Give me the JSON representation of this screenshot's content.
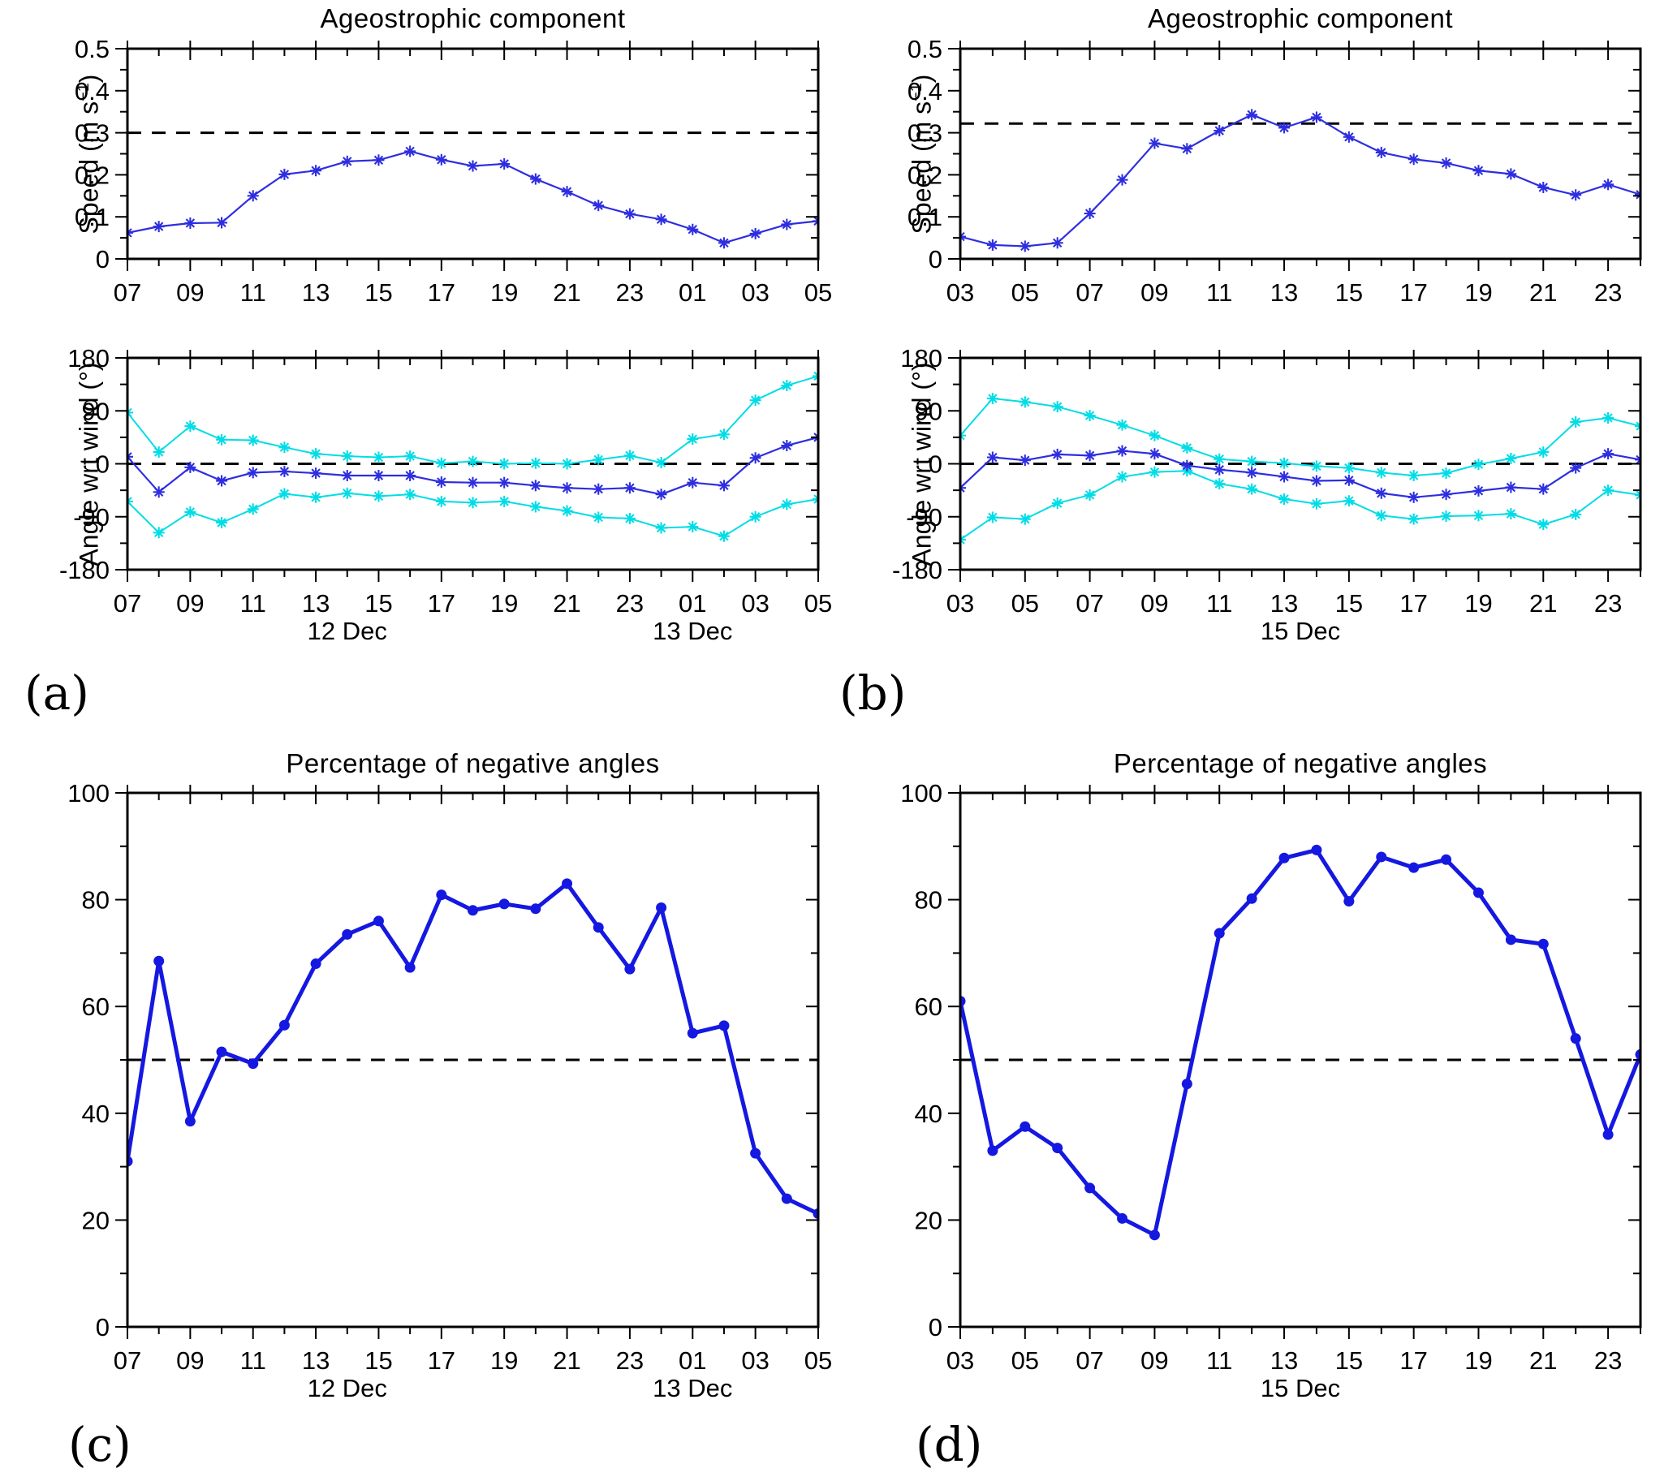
{
  "figure": {
    "panel_letters": [
      "(a)",
      "(b)",
      "(c)",
      "(d)"
    ],
    "colors": {
      "median_blue": "#2e2ee0",
      "envelope_cyan": "#00dde6",
      "percentage_blue": "#1518e0",
      "dashed_black": "#000000"
    }
  },
  "chart_data": [
    {
      "id": "a-speed",
      "type": "line",
      "title": "Ageostrophic component",
      "ylabel": {
        "pre": "Speed (m s",
        "sup": "−1",
        "post": ")"
      },
      "marker": "asterisk",
      "x": {
        "start_hour": 7,
        "end_hour": 29,
        "tick_labels": [
          {
            "h": 7,
            "t": "07"
          },
          {
            "h": 9,
            "t": "09"
          },
          {
            "h": 11,
            "t": "11"
          },
          {
            "h": 13,
            "t": "13"
          },
          {
            "h": 15,
            "t": "15"
          },
          {
            "h": 17,
            "t": "17"
          },
          {
            "h": 19,
            "t": "19"
          },
          {
            "h": 21,
            "t": "21"
          },
          {
            "h": 23,
            "t": "23"
          },
          {
            "h": 25,
            "t": "01"
          },
          {
            "h": 27,
            "t": "03"
          },
          {
            "h": 29,
            "t": "05"
          }
        ],
        "day_labels": []
      },
      "y": {
        "min": 0,
        "max": 0.5,
        "minor_step": 0.05,
        "ticks": [
          {
            "v": 0,
            "t": "0"
          },
          {
            "v": 0.1,
            "t": "0.1"
          },
          {
            "v": 0.2,
            "t": "0.2"
          },
          {
            "v": 0.3,
            "t": "0.3"
          },
          {
            "v": 0.4,
            "t": "0.4"
          },
          {
            "v": 0.5,
            "t": "0.5"
          }
        ]
      },
      "dashed_y": 0.3,
      "series": [
        {
          "name": "ageostrophic-speed",
          "color": "#2e2ee0",
          "width": 2.2,
          "values": [
            0.062,
            0.077,
            0.085,
            0.086,
            0.15,
            0.201,
            0.21,
            0.232,
            0.235,
            0.256,
            0.236,
            0.221,
            0.226,
            0.19,
            0.16,
            0.127,
            0.107,
            0.094,
            0.07,
            0.038,
            0.06,
            0.082,
            0.09
          ]
        }
      ]
    },
    {
      "id": "a-angle",
      "type": "line",
      "ylabel": {
        "pre": "Angle wrt wind (°)",
        "sup": "",
        "post": ""
      },
      "marker": "asterisk",
      "x": {
        "start_hour": 7,
        "end_hour": 29,
        "tick_labels": [
          {
            "h": 7,
            "t": "07"
          },
          {
            "h": 9,
            "t": "09"
          },
          {
            "h": 11,
            "t": "11"
          },
          {
            "h": 13,
            "t": "13"
          },
          {
            "h": 15,
            "t": "15"
          },
          {
            "h": 17,
            "t": "17"
          },
          {
            "h": 19,
            "t": "19"
          },
          {
            "h": 21,
            "t": "21"
          },
          {
            "h": 23,
            "t": "23"
          },
          {
            "h": 25,
            "t": "01"
          },
          {
            "h": 27,
            "t": "03"
          },
          {
            "h": 29,
            "t": "05"
          }
        ],
        "day_labels": [
          {
            "h": 14,
            "t": "12 Dec"
          },
          {
            "h": 25,
            "t": "13 Dec"
          }
        ]
      },
      "y": {
        "min": -180,
        "max": 180,
        "minor_step": 45,
        "ticks": [
          {
            "v": -180,
            "t": "-180"
          },
          {
            "v": -90,
            "t": "-90"
          },
          {
            "v": 0,
            "t": "0"
          },
          {
            "v": 90,
            "t": "90"
          },
          {
            "v": 180,
            "t": "180"
          }
        ]
      },
      "dashed_y": 0,
      "series": [
        {
          "name": "angle-upper-envelope",
          "color": "#00dde6",
          "width": 2.0,
          "values": [
            87,
            20,
            64,
            41,
            40,
            28,
            17,
            13,
            11,
            13,
            1,
            4,
            0,
            1,
            0,
            7,
            14,
            2,
            42,
            50,
            108,
            133,
            149
          ]
        },
        {
          "name": "angle-lower-envelope",
          "color": "#00dde6",
          "width": 2.0,
          "values": [
            -64,
            -117,
            -82,
            -100,
            -77,
            -51,
            -57,
            -50,
            -55,
            -52,
            -64,
            -66,
            -64,
            -73,
            -80,
            -91,
            -93,
            -109,
            -107,
            -123,
            -90,
            -69,
            -60
          ]
        },
        {
          "name": "angle-median",
          "color": "#2e2ee0",
          "width": 2.2,
          "values": [
            12,
            -48,
            -6,
            -29,
            -15,
            -13,
            -16,
            -20,
            -20,
            -20,
            -31,
            -32,
            -32,
            -37,
            -41,
            -43,
            -41,
            -52,
            -32,
            -37,
            10,
            31,
            45
          ]
        }
      ]
    },
    {
      "id": "b-speed",
      "type": "line",
      "title": "Ageostrophic component",
      "ylabel": {
        "pre": "Speed (m s",
        "sup": "−1",
        "post": ")"
      },
      "marker": "asterisk",
      "x": {
        "start_hour": 3,
        "end_hour": 24,
        "tick_labels": [
          {
            "h": 3,
            "t": "03"
          },
          {
            "h": 5,
            "t": "05"
          },
          {
            "h": 7,
            "t": "07"
          },
          {
            "h": 9,
            "t": "09"
          },
          {
            "h": 11,
            "t": "11"
          },
          {
            "h": 13,
            "t": "13"
          },
          {
            "h": 15,
            "t": "15"
          },
          {
            "h": 17,
            "t": "17"
          },
          {
            "h": 19,
            "t": "19"
          },
          {
            "h": 21,
            "t": "21"
          },
          {
            "h": 23,
            "t": "23"
          }
        ],
        "day_labels": []
      },
      "y": {
        "min": 0,
        "max": 0.5,
        "minor_step": 0.05,
        "ticks": [
          {
            "v": 0,
            "t": "0"
          },
          {
            "v": 0.1,
            "t": "0.1"
          },
          {
            "v": 0.2,
            "t": "0.2"
          },
          {
            "v": 0.3,
            "t": "0.3"
          },
          {
            "v": 0.4,
            "t": "0.4"
          },
          {
            "v": 0.5,
            "t": "0.5"
          }
        ]
      },
      "dashed_y": 0.322,
      "series": [
        {
          "name": "ageostrophic-speed",
          "color": "#2e2ee0",
          "width": 2.2,
          "values": [
            0.053,
            0.033,
            0.03,
            0.038,
            0.108,
            0.188,
            0.275,
            0.262,
            0.305,
            0.343,
            0.312,
            0.337,
            0.29,
            0.253,
            0.237,
            0.228,
            0.21,
            0.202,
            0.17,
            0.152,
            0.177,
            0.153
          ]
        }
      ]
    },
    {
      "id": "b-angle",
      "type": "line",
      "ylabel": {
        "pre": "Angle wrt wind (°)",
        "sup": "",
        "post": ""
      },
      "marker": "asterisk",
      "x": {
        "start_hour": 3,
        "end_hour": 24,
        "tick_labels": [
          {
            "h": 3,
            "t": "03"
          },
          {
            "h": 5,
            "t": "05"
          },
          {
            "h": 7,
            "t": "07"
          },
          {
            "h": 9,
            "t": "09"
          },
          {
            "h": 11,
            "t": "11"
          },
          {
            "h": 13,
            "t": "13"
          },
          {
            "h": 15,
            "t": "15"
          },
          {
            "h": 17,
            "t": "17"
          },
          {
            "h": 19,
            "t": "19"
          },
          {
            "h": 21,
            "t": "21"
          },
          {
            "h": 23,
            "t": "23"
          }
        ],
        "day_labels": [
          {
            "h": 13.5,
            "t": "15 Dec"
          }
        ]
      },
      "y": {
        "min": -180,
        "max": 180,
        "minor_step": 45,
        "ticks": [
          {
            "v": -180,
            "t": "-180"
          },
          {
            "v": -90,
            "t": "-90"
          },
          {
            "v": 0,
            "t": "0"
          },
          {
            "v": 90,
            "t": "90"
          },
          {
            "v": 180,
            "t": "180"
          }
        ]
      },
      "dashed_y": 0,
      "series": [
        {
          "name": "angle-upper-envelope",
          "color": "#00dde6",
          "width": 2.0,
          "values": [
            48,
            111,
            105,
            97,
            82,
            66,
            48,
            27,
            8,
            4,
            1,
            -4,
            -7,
            -15,
            -20,
            -16,
            -1,
            9,
            20,
            71,
            78,
            64
          ]
        },
        {
          "name": "angle-lower-envelope",
          "color": "#00dde6",
          "width": 2.0,
          "values": [
            -129,
            -91,
            -94,
            -67,
            -53,
            -22,
            -14,
            -12,
            -34,
            -43,
            -60,
            -68,
            -63,
            -88,
            -94,
            -89,
            -88,
            -85,
            -103,
            -86,
            -45,
            -53
          ]
        },
        {
          "name": "angle-median",
          "color": "#2e2ee0",
          "width": 2.2,
          "values": [
            -41,
            11,
            6,
            16,
            14,
            22,
            17,
            -3,
            -10,
            -15,
            -22,
            -29,
            -28,
            -50,
            -57,
            -52,
            -46,
            -40,
            -43,
            -7,
            17,
            7
          ]
        }
      ]
    },
    {
      "id": "c-pct",
      "type": "line",
      "title": "Percentage of negative angles",
      "marker": "dot",
      "x": {
        "start_hour": 7,
        "end_hour": 29,
        "tick_labels": [
          {
            "h": 7,
            "t": "07"
          },
          {
            "h": 9,
            "t": "09"
          },
          {
            "h": 11,
            "t": "11"
          },
          {
            "h": 13,
            "t": "13"
          },
          {
            "h": 15,
            "t": "15"
          },
          {
            "h": 17,
            "t": "17"
          },
          {
            "h": 19,
            "t": "19"
          },
          {
            "h": 21,
            "t": "21"
          },
          {
            "h": 23,
            "t": "23"
          },
          {
            "h": 25,
            "t": "01"
          },
          {
            "h": 27,
            "t": "03"
          },
          {
            "h": 29,
            "t": "05"
          }
        ],
        "day_labels": [
          {
            "h": 14,
            "t": "12 Dec"
          },
          {
            "h": 25,
            "t": "13 Dec"
          }
        ]
      },
      "y": {
        "min": 0,
        "max": 100,
        "minor_step": 10,
        "ticks": [
          {
            "v": 0,
            "t": "0"
          },
          {
            "v": 20,
            "t": "20"
          },
          {
            "v": 40,
            "t": "40"
          },
          {
            "v": 60,
            "t": "60"
          },
          {
            "v": 80,
            "t": "80"
          },
          {
            "v": 100,
            "t": "100"
          }
        ]
      },
      "dashed_y": 50,
      "series": [
        {
          "name": "percent-negative-angles",
          "color": "#1518e0",
          "width": 5,
          "values": [
            31,
            68.5,
            38.5,
            51.5,
            49.3,
            56.5,
            68,
            73.5,
            76,
            67.3,
            80.9,
            78,
            79.2,
            78.3,
            83,
            74.8,
            67,
            78.5,
            55,
            56.4,
            32.5,
            24,
            21.2
          ]
        }
      ]
    },
    {
      "id": "d-pct",
      "type": "line",
      "title": "Percentage of negative angles",
      "marker": "dot",
      "x": {
        "start_hour": 3,
        "end_hour": 24,
        "tick_labels": [
          {
            "h": 3,
            "t": "03"
          },
          {
            "h": 5,
            "t": "05"
          },
          {
            "h": 7,
            "t": "07"
          },
          {
            "h": 9,
            "t": "09"
          },
          {
            "h": 11,
            "t": "11"
          },
          {
            "h": 13,
            "t": "13"
          },
          {
            "h": 15,
            "t": "15"
          },
          {
            "h": 17,
            "t": "17"
          },
          {
            "h": 19,
            "t": "19"
          },
          {
            "h": 21,
            "t": "21"
          },
          {
            "h": 23,
            "t": "23"
          }
        ],
        "day_labels": [
          {
            "h": 13.5,
            "t": "15 Dec"
          }
        ]
      },
      "y": {
        "min": 0,
        "max": 100,
        "minor_step": 10,
        "ticks": [
          {
            "v": 0,
            "t": "0"
          },
          {
            "v": 20,
            "t": "20"
          },
          {
            "v": 40,
            "t": "40"
          },
          {
            "v": 60,
            "t": "60"
          },
          {
            "v": 80,
            "t": "80"
          },
          {
            "v": 100,
            "t": "100"
          }
        ]
      },
      "dashed_y": 50,
      "series": [
        {
          "name": "percent-negative-angles",
          "color": "#1518e0",
          "width": 5,
          "values": [
            61,
            33,
            37.5,
            33.5,
            26,
            20.3,
            17.2,
            45.5,
            73.7,
            80.2,
            87.8,
            89.3,
            79.7,
            88,
            86,
            87.5,
            81.3,
            72.5,
            71.7,
            54,
            36,
            51
          ]
        }
      ]
    }
  ]
}
